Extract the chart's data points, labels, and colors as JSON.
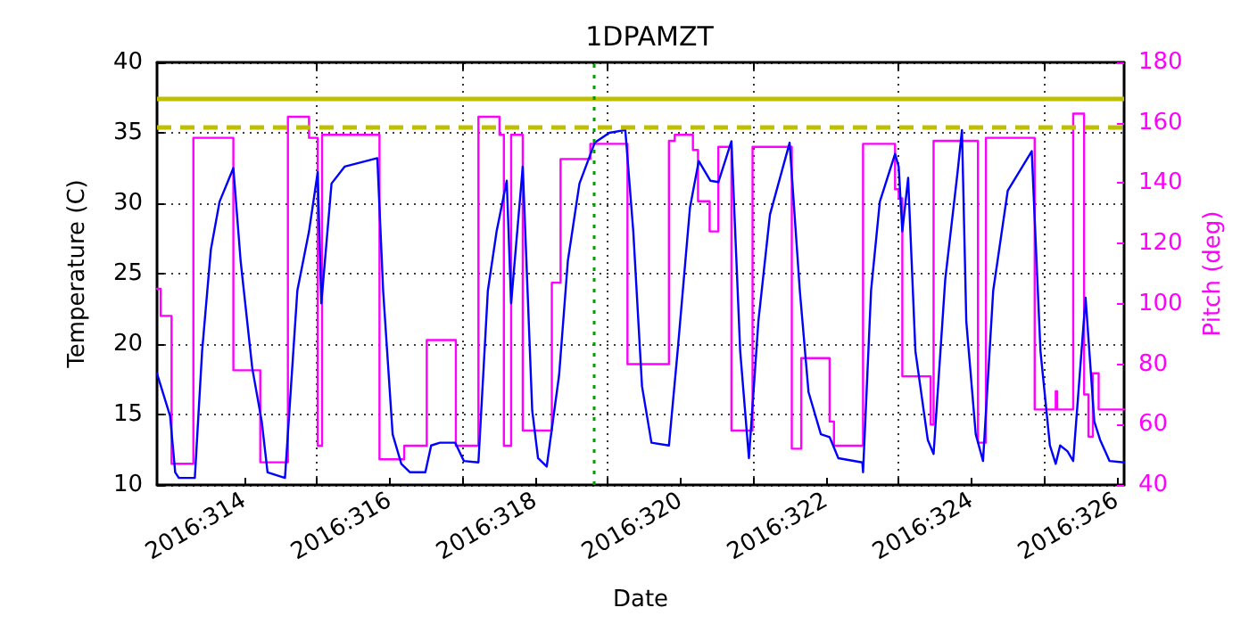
{
  "chart_data": {
    "type": "line",
    "title": "1DPAMZT",
    "xlabel": "Date",
    "ylabel": "Temperature (C)",
    "y2label": "Pitch (deg)",
    "xlim": [
      "2016-11-07T19:12",
      "2016-11-21T02:24"
    ],
    "xticks": [
      {
        "value": "2016-11-09",
        "label": "2016:314"
      },
      {
        "value": "2016-11-10",
        "label": null
      },
      {
        "value": "2016-11-11",
        "label": "2016:316"
      },
      {
        "value": "2016-11-12",
        "label": null
      },
      {
        "value": "2016-11-13",
        "label": "2016:318"
      },
      {
        "value": "2016-11-14",
        "label": null
      },
      {
        "value": "2016-11-15",
        "label": "2016:320"
      },
      {
        "value": "2016-11-16",
        "label": null
      },
      {
        "value": "2016-11-17",
        "label": "2016:322"
      },
      {
        "value": "2016-11-18",
        "label": null
      },
      {
        "value": "2016-11-19",
        "label": "2016:324"
      },
      {
        "value": "2016-11-20",
        "label": null
      },
      {
        "value": "2016-11-21",
        "label": "2016:326"
      }
    ],
    "ylim": [
      10,
      40
    ],
    "yticks": [
      10,
      15,
      20,
      25,
      30,
      35,
      40
    ],
    "y2lim": [
      40,
      180
    ],
    "y2ticks": [
      40,
      60,
      80,
      100,
      120,
      140,
      160,
      180
    ],
    "grid": true,
    "marker": "none",
    "line_style": "solid",
    "ref_lines": [
      {
        "axis": "y",
        "value": 37.5,
        "label": null,
        "color": "#bfbf00",
        "line_style": "solid"
      },
      {
        "axis": "y",
        "value": 35.4,
        "label": null,
        "color": "#bfbf00",
        "line_style": "dashed"
      },
      {
        "axis": "x",
        "value": "2016-11-13T19:12",
        "label": null,
        "color": "#00a000",
        "line_style": "dotted"
      }
    ],
    "series": [
      {
        "color": "#0000ff",
        "x": [
          "2016-11-07T19:12",
          "2016-11-07T23:31",
          "2016-11-08T01:12",
          "2016-11-08T02:24",
          "2016-11-08T07:41",
          "2016-11-08T10:05",
          "2016-11-08T12:58",
          "2016-11-08T15:50",
          "2016-11-08T20:24",
          "2016-11-08T22:48",
          "2016-11-09T02:38",
          "2016-11-09T05:46",
          "2016-11-09T07:41",
          "2016-11-09T13:26",
          "2016-11-09T17:31",
          "2016-11-09T21:22",
          "2016-11-10T00:14",
          "2016-11-10T01:26",
          "2016-11-10T04:48",
          "2016-11-10T09:07",
          "2016-11-10T19:55",
          "2016-11-10T21:50",
          "2016-11-11T00:58",
          "2016-11-11T03:50",
          "2016-11-11T06:43",
          "2016-11-11T11:46",
          "2016-11-11T13:41",
          "2016-11-11T16:34",
          "2016-11-11T21:36",
          "2016-11-12T00:29",
          "2016-11-12T05:17",
          "2016-11-12T08:24",
          "2016-11-12T11:17",
          "2016-11-12T14:38",
          "2016-11-12T16:05",
          "2016-11-12T19:55",
          "2016-11-12T23:02",
          "2016-11-13T00:58",
          "2016-11-13T03:50",
          "2016-11-13T07:55",
          "2016-11-13T10:48",
          "2016-11-13T14:38",
          "2016-11-13T19:41",
          "2016-11-14T00:29",
          "2016-11-14T05:46",
          "2016-11-14T08:24",
          "2016-11-14T11:17",
          "2016-11-14T14:24",
          "2016-11-14T20:10",
          "2016-11-14T23:02",
          "2016-11-15T03:07",
          "2016-11-15T06:00",
          "2016-11-15T09:50",
          "2016-11-15T12:29",
          "2016-11-15T16:48",
          "2016-11-15T19:41",
          "2016-11-15T22:34",
          "2016-11-16T01:41",
          "2016-11-16T05:31",
          "2016-11-16T12:00",
          "2016-11-16T15:22",
          "2016-11-16T18:14",
          "2016-11-16T22:19",
          "2016-11-17T01:12",
          "2016-11-17T04:05",
          "2016-11-17T12:00",
          "2016-11-17T12:14",
          "2016-11-17T14:53",
          "2016-11-17T17:46",
          "2016-11-17T22:48",
          "2016-11-18T00:00",
          "2016-11-18T01:12",
          "2016-11-18T03:07",
          "2016-11-18T05:31",
          "2016-11-18T09:36",
          "2016-11-18T11:31",
          "2016-11-18T15:22",
          "2016-11-18T19:26",
          "2016-11-18T20:53",
          "2016-11-18T22:19",
          "2016-11-19T01:26",
          "2016-11-19T03:50",
          "2016-11-19T07:12",
          "2016-11-19T12:00",
          "2016-11-19T19:55",
          "2016-11-19T22:48",
          "2016-11-20T01:55",
          "2016-11-20T03:50",
          "2016-11-20T05:17",
          "2016-11-20T07:41",
          "2016-11-20T09:36",
          "2016-11-20T13:41",
          "2016-11-20T16:34",
          "2016-11-20T18:29",
          "2016-11-20T21:36",
          "2016-11-21T02:24"
        ],
        "values": [
          17.9,
          14.9,
          10.9,
          10.5,
          10.5,
          19.5,
          26.7,
          30.1,
          32.5,
          25.9,
          18.3,
          14.5,
          10.9,
          10.5,
          23.8,
          28.0,
          32.2,
          22.9,
          31.4,
          32.6,
          33.2,
          23.8,
          13.6,
          11.5,
          10.9,
          10.9,
          12.8,
          13.0,
          13.0,
          11.7,
          11.6,
          23.8,
          28.0,
          31.6,
          22.9,
          32.6,
          15.3,
          11.9,
          11.3,
          17.8,
          25.9,
          31.4,
          34.3,
          35.0,
          35.2,
          28.0,
          17.0,
          13.0,
          12.8,
          19.5,
          29.7,
          33.0,
          31.6,
          31.5,
          34.4,
          19.5,
          11.9,
          21.6,
          29.2,
          34.3,
          23.8,
          16.6,
          13.6,
          13.4,
          11.9,
          11.6,
          10.9,
          23.8,
          30.1,
          33.5,
          32.6,
          28.0,
          31.8,
          19.5,
          13.2,
          12.2,
          24.6,
          32.2,
          35.2,
          21.6,
          13.6,
          11.7,
          23.8,
          30.9,
          33.7,
          19.5,
          12.8,
          11.5,
          12.8,
          12.4,
          11.7,
          23.3,
          14.5,
          13.2,
          11.7,
          11.6
        ]
      },
      {
        "type": "step",
        "axis": "y2",
        "color": "#ff00ff",
        "x": [
          "2016-11-07T19:12",
          "2016-11-07T20:24",
          "2016-11-08T00:00",
          "2016-11-08T07:12",
          "2016-11-08T20:24",
          "2016-11-09T05:17",
          "2016-11-09T14:24",
          "2016-11-09T21:22",
          "2016-11-10T00:14",
          "2016-11-10T01:41",
          "2016-11-10T20:38",
          "2016-11-11T04:48",
          "2016-11-11T12:14",
          "2016-11-11T21:50",
          "2016-11-12T05:17",
          "2016-11-12T12:14",
          "2016-11-12T13:41",
          "2016-11-12T16:05",
          "2016-11-12T19:55",
          "2016-11-13T05:31",
          "2016-11-13T08:24",
          "2016-11-13T18:14",
          "2016-11-14T06:29",
          "2016-11-14T20:10",
          "2016-11-14T22:05",
          "2016-11-15T04:05",
          "2016-11-15T05:46",
          "2016-11-15T09:36",
          "2016-11-15T12:29",
          "2016-11-15T16:48",
          "2016-11-15T23:46",
          "2016-11-16T12:43",
          "2016-11-16T15:50",
          "2016-11-17T01:12",
          "2016-11-17T02:38",
          "2016-11-17T12:14",
          "2016-11-17T22:48",
          "2016-11-18T00:00",
          "2016-11-18T01:12",
          "2016-11-18T10:34",
          "2016-11-18T11:31",
          "2016-11-19T02:10",
          "2016-11-19T04:48",
          "2016-11-19T20:53",
          "2016-11-20T03:50",
          "2016-11-20T04:19",
          "2016-11-20T09:36",
          "2016-11-20T13:12",
          "2016-11-20T14:38",
          "2016-11-20T16:05",
          "2016-11-20T18:00",
          "2016-11-21T02:24"
        ],
        "values": [
          105,
          96,
          47,
          155,
          78,
          47.5,
          162,
          155,
          53,
          156,
          48.5,
          53,
          88,
          53,
          162,
          156,
          53,
          156,
          58,
          107,
          148,
          153,
          80,
          154,
          156,
          151,
          134,
          124,
          152,
          58,
          152,
          52,
          82,
          61,
          53,
          153,
          138,
          135,
          76,
          60,
          154,
          54,
          155,
          65,
          71,
          65,
          163,
          70,
          56,
          77,
          65,
          65
        ]
      }
    ]
  }
}
